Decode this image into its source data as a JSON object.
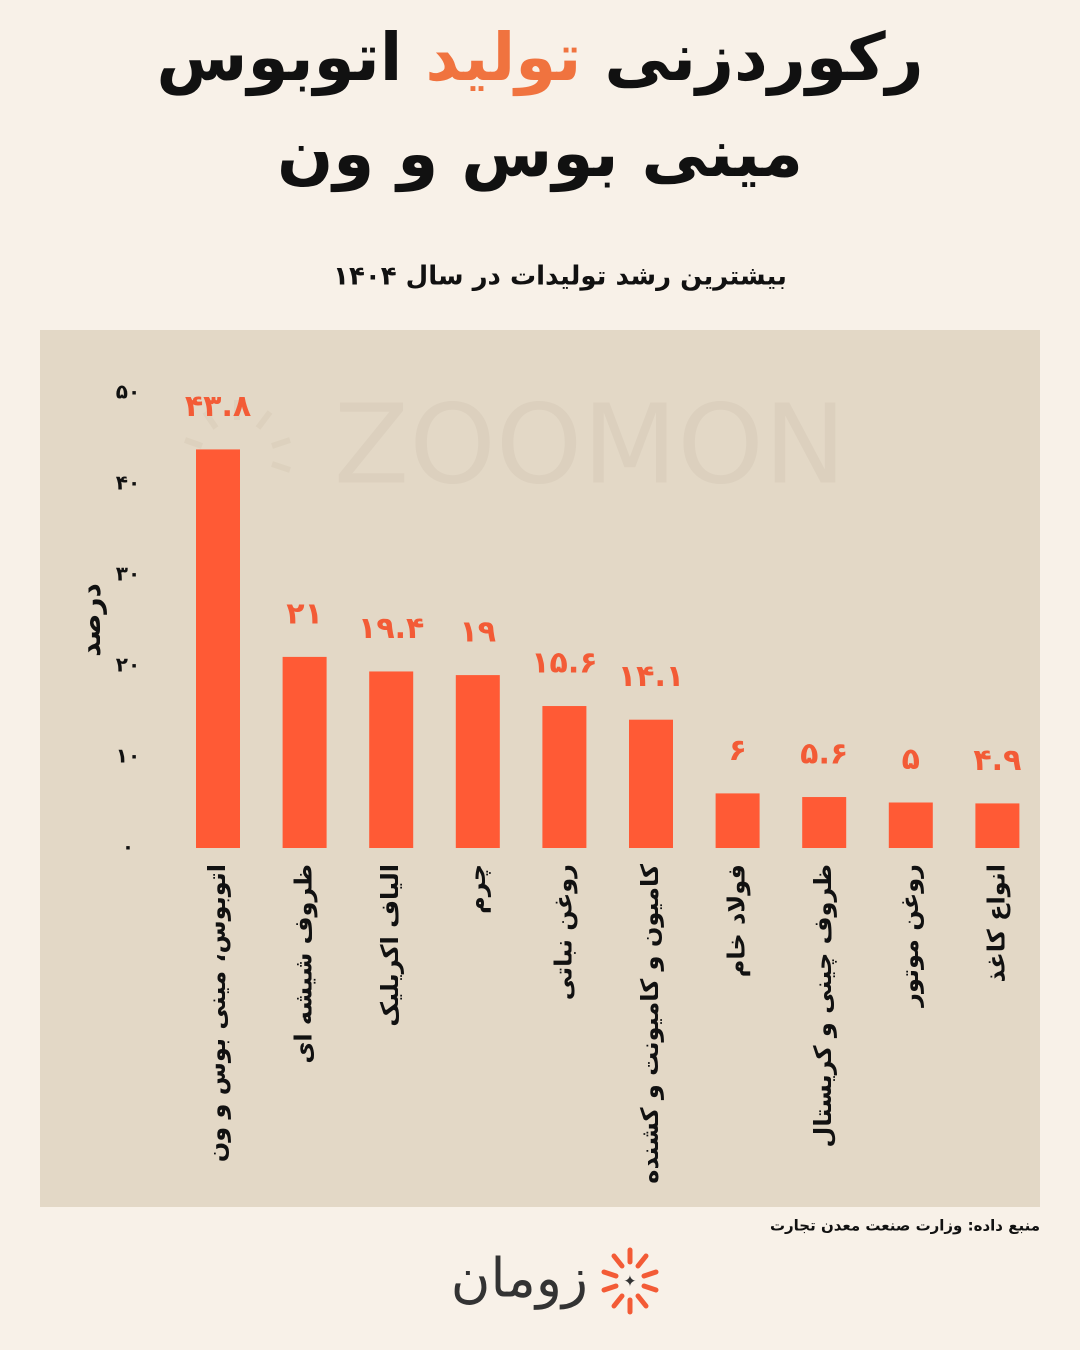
{
  "chart_data": {
    "type": "bar",
    "title": [
      "رکوردزنی",
      "تولید",
      "اتوبوس",
      "مینی بوس و ون"
    ],
    "subtitle": "بیشترین رشد تولیدات در سال ۱۴۰۴",
    "y_label": "درصد",
    "watermark": "ZOOMON",
    "categories": [
      "اتوبوس، مینی بوس و ون",
      "ظروف شیشه ای",
      "الیاف اکریلیک",
      "چرم",
      "روغن نباتی",
      "کامیون و کامیونت و کشنده",
      "فولاد خام",
      "ظروف چینی و کریستال",
      "روغن موتور",
      "انواع کاغذ"
    ],
    "values": [
      43.8,
      21,
      19.4,
      19,
      15.6,
      14.1,
      6,
      5.6,
      5,
      4.9
    ],
    "value_labels": [
      "۴۳.۸",
      "۲۱",
      "۱۹.۴",
      "۱۹",
      "۱۵.۶",
      "۱۴.۱",
      "۶",
      "۵.۶",
      "۵",
      "۴.۹"
    ],
    "color": "#ff5a35",
    "label_color": "#f35b36",
    "ylim": [
      0,
      50
    ],
    "yticks": [
      {
        "value": 0,
        "label": "۰"
      },
      {
        "value": 10,
        "label": "۱۰"
      },
      {
        "value": 20,
        "label": "۲۰"
      },
      {
        "value": 30,
        "label": "۳۰"
      },
      {
        "value": 40,
        "label": "۴۰"
      },
      {
        "value": 50,
        "label": "۵۰"
      }
    ],
    "grid": false
  },
  "source": "منبع داده: وزارت صنعت معدن تجارت",
  "brand": "زومان"
}
